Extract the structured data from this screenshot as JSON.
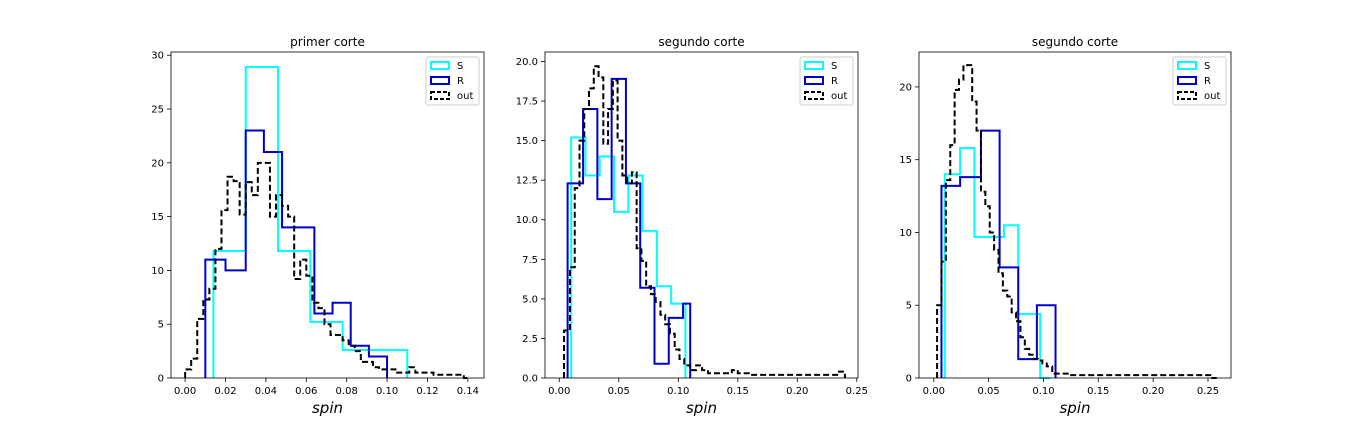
{
  "colors": {
    "S": "#00ffff",
    "R": "#0000cd",
    "out": "#000000"
  },
  "chart_data": [
    {
      "type": "histogram-step",
      "title": "primer corte",
      "xlabel": "spin",
      "ylabel": "",
      "xlim": [
        -0.007,
        0.148
      ],
      "ylim": [
        0,
        30.3
      ],
      "xticks": [
        0.0,
        0.02,
        0.04,
        0.06,
        0.08,
        0.1,
        0.12,
        0.14
      ],
      "xtick_labels": [
        "0.00",
        "0.02",
        "0.04",
        "0.06",
        "0.08",
        "0.10",
        "0.12",
        "0.14"
      ],
      "yticks": [
        0,
        5,
        10,
        15,
        20,
        25,
        30
      ],
      "ytick_labels": [
        "0",
        "5",
        "10",
        "15",
        "20",
        "25",
        "30"
      ],
      "legend_position": "top-right",
      "series": [
        {
          "name": "S",
          "style": "solid",
          "edges": [
            0.014,
            0.03,
            0.046,
            0.062,
            0.078,
            0.094,
            0.11
          ],
          "counts": [
            11.8,
            28.9,
            11.8,
            5.2,
            2.6,
            2.6
          ]
        },
        {
          "name": "R",
          "style": "solid",
          "edges": [
            0.01,
            0.02,
            0.03,
            0.039,
            0.048,
            0.064,
            0.073,
            0.082,
            0.091,
            0.1
          ],
          "counts": [
            11.0,
            10.0,
            23.0,
            21.0,
            14.0,
            6.0,
            7.0,
            3.0,
            2.0
          ]
        },
        {
          "name": "out",
          "style": "dashed",
          "edges": [
            0.0,
            0.003,
            0.006,
            0.009,
            0.012,
            0.015,
            0.018,
            0.021,
            0.024,
            0.027,
            0.03,
            0.033,
            0.036,
            0.039,
            0.042,
            0.045,
            0.048,
            0.051,
            0.054,
            0.057,
            0.06,
            0.063,
            0.066,
            0.069,
            0.072,
            0.075,
            0.078,
            0.081,
            0.084,
            0.087,
            0.09,
            0.093,
            0.096,
            0.099,
            0.102,
            0.105,
            0.108,
            0.111,
            0.114,
            0.117,
            0.12,
            0.123,
            0.126,
            0.129,
            0.132,
            0.135,
            0.138,
            0.141
          ],
          "counts": [
            0.8,
            1.8,
            5.5,
            7.3,
            8.3,
            12.0,
            15.6,
            18.7,
            18.3,
            15.2,
            18.2,
            17.0,
            20.0,
            20.0,
            15.0,
            17.0,
            16.0,
            15.0,
            9.2,
            11.0,
            9.5,
            7.0,
            6.5,
            5.0,
            4.0,
            4.0,
            3.5,
            3.0,
            2.5,
            1.5,
            1.5,
            1.0,
            0.8,
            0.8,
            0.8,
            0.5,
            0.5,
            1.0,
            0.5,
            0.5,
            0.5,
            0.3,
            0.3,
            0.3,
            0.3,
            0.3,
            0.0
          ]
        }
      ]
    },
    {
      "type": "histogram-step",
      "title": "segundo corte",
      "xlabel": "spin",
      "ylabel": "",
      "xlim": [
        -0.012,
        0.251
      ],
      "ylim": [
        0,
        20.6
      ],
      "xticks": [
        0.0,
        0.05,
        0.1,
        0.15,
        0.2,
        0.25
      ],
      "xtick_labels": [
        "0.00",
        "0.05",
        "0.10",
        "0.15",
        "0.20",
        "0.25"
      ],
      "yticks": [
        0.0,
        2.5,
        5.0,
        7.5,
        10.0,
        12.5,
        15.0,
        17.5,
        20.0
      ],
      "ytick_labels": [
        "0.0",
        "2.5",
        "5.0",
        "7.5",
        "10.0",
        "12.5",
        "15.0",
        "17.5",
        "20.0"
      ],
      "legend_position": "top-right",
      "series": [
        {
          "name": "S",
          "style": "solid",
          "edges": [
            0.01,
            0.022,
            0.034,
            0.046,
            0.058,
            0.07,
            0.082,
            0.094,
            0.106
          ],
          "counts": [
            15.2,
            12.8,
            14.0,
            10.5,
            12.8,
            9.3,
            5.8,
            4.7
          ]
        },
        {
          "name": "R",
          "style": "solid",
          "edges": [
            0.007,
            0.02,
            0.032,
            0.044,
            0.056,
            0.068,
            0.08,
            0.092,
            0.104,
            0.11
          ],
          "counts": [
            12.3,
            17.0,
            11.3,
            18.9,
            12.3,
            5.7,
            0.9,
            3.8,
            4.7
          ]
        },
        {
          "name": "out",
          "style": "dashed",
          "edges": [
            0.004,
            0.009,
            0.013,
            0.017,
            0.021,
            0.025,
            0.029,
            0.033,
            0.037,
            0.041,
            0.045,
            0.049,
            0.053,
            0.057,
            0.061,
            0.065,
            0.069,
            0.073,
            0.077,
            0.081,
            0.085,
            0.089,
            0.093,
            0.097,
            0.101,
            0.105,
            0.11,
            0.115,
            0.12,
            0.125,
            0.13,
            0.135,
            0.14,
            0.145,
            0.15,
            0.155,
            0.16,
            0.165,
            0.17,
            0.175,
            0.18,
            0.185,
            0.19,
            0.195,
            0.2,
            0.205,
            0.21,
            0.215,
            0.22,
            0.225,
            0.23,
            0.235,
            0.24
          ],
          "counts": [
            3.0,
            7.0,
            12.0,
            15.0,
            17.0,
            18.3,
            19.7,
            19.0,
            14.8,
            17.0,
            18.8,
            15.0,
            12.8,
            12.3,
            13.0,
            8.2,
            7.4,
            5.8,
            5.3,
            4.8,
            4.0,
            3.4,
            2.8,
            1.8,
            1.2,
            0.8,
            0.5,
            0.8,
            0.5,
            0.3,
            0.3,
            0.3,
            0.3,
            0.5,
            0.3,
            0.3,
            0.2,
            0.2,
            0.2,
            0.2,
            0.2,
            0.2,
            0.2,
            0.2,
            0.2,
            0.2,
            0.2,
            0.2,
            0.2,
            0.2,
            0.2,
            0.4
          ]
        }
      ]
    },
    {
      "type": "histogram-step",
      "title": "segundo corte",
      "xlabel": "spin",
      "ylabel": "",
      "xlim": [
        -0.0135,
        0.271
      ],
      "ylim": [
        0,
        22.4
      ],
      "xticks": [
        0.0,
        0.05,
        0.1,
        0.15,
        0.2,
        0.25
      ],
      "xtick_labels": [
        "0.00",
        "0.05",
        "0.10",
        "0.15",
        "0.20",
        "0.25"
      ],
      "yticks": [
        0,
        5,
        10,
        15,
        20
      ],
      "ytick_labels": [
        "0",
        "5",
        "10",
        "15",
        "20"
      ],
      "legend_position": "top-right",
      "series": [
        {
          "name": "S",
          "style": "solid",
          "edges": [
            0.01,
            0.024,
            0.037,
            0.05,
            0.064,
            0.077,
            0.09,
            0.097,
            0.106
          ],
          "counts": [
            14.0,
            15.8,
            9.7,
            9.7,
            10.5,
            4.4,
            4.4,
            0.0
          ]
        },
        {
          "name": "R",
          "style": "solid",
          "edges": [
            0.007,
            0.024,
            0.043,
            0.06,
            0.077,
            0.094,
            0.111
          ],
          "counts": [
            13.2,
            13.8,
            17.0,
            7.6,
            1.3,
            5.0
          ]
        },
        {
          "name": "out",
          "style": "dashed",
          "edges": [
            0.003,
            0.007,
            0.011,
            0.015,
            0.019,
            0.023,
            0.027,
            0.031,
            0.035,
            0.039,
            0.043,
            0.047,
            0.051,
            0.055,
            0.059,
            0.063,
            0.067,
            0.071,
            0.075,
            0.079,
            0.083,
            0.087,
            0.091,
            0.095,
            0.099,
            0.103,
            0.108,
            0.113,
            0.118,
            0.123,
            0.128,
            0.133,
            0.138,
            0.143,
            0.148,
            0.153,
            0.158,
            0.163,
            0.168,
            0.173,
            0.178,
            0.183,
            0.188,
            0.193,
            0.198,
            0.203,
            0.208,
            0.213,
            0.218,
            0.223,
            0.228,
            0.233,
            0.238,
            0.243,
            0.248,
            0.253,
            0.258
          ],
          "counts": [
            5.0,
            8.0,
            13.6,
            16.0,
            19.8,
            20.5,
            21.5,
            21.5,
            19.0,
            17.0,
            12.8,
            11.8,
            10.0,
            8.8,
            7.2,
            6.0,
            5.6,
            4.5,
            3.9,
            2.8,
            2.0,
            1.6,
            1.3,
            1.2,
            1.0,
            0.8,
            0.3,
            0.3,
            0.3,
            0.2,
            0.2,
            0.2,
            0.2,
            0.2,
            0.2,
            0.2,
            0.2,
            0.2,
            0.2,
            0.2,
            0.2,
            0.2,
            0.2,
            0.2,
            0.2,
            0.2,
            0.2,
            0.2,
            0.2,
            0.2,
            0.2,
            0.2,
            0.2,
            0.2,
            0.2,
            0.0
          ]
        }
      ]
    }
  ]
}
